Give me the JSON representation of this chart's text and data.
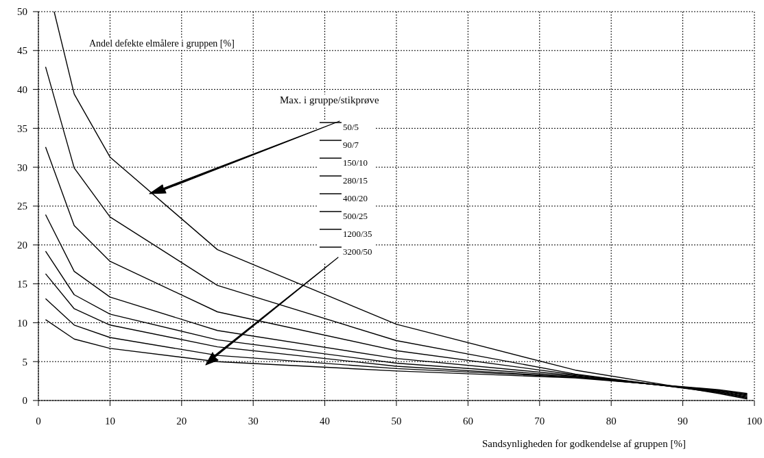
{
  "chart_data": {
    "type": "line",
    "ylabel": "Andel defekte elmålere i gruppen [%]",
    "xlabel": "Sandsynligheden for godkendelse af gruppen [%]",
    "legend_title": "Max. i gruppe/stikprøve",
    "legend": "top",
    "grid": true,
    "x": [
      1,
      5,
      10,
      25,
      50,
      75,
      95,
      99
    ],
    "xlim": [
      0,
      100
    ],
    "xticks": [
      0,
      10,
      20,
      30,
      40,
      50,
      60,
      70,
      80,
      90,
      100
    ],
    "ylim": [
      0,
      50
    ],
    "yticks": [
      0,
      5,
      10,
      15,
      20,
      25,
      30,
      35,
      40,
      45,
      50
    ],
    "series": [
      {
        "name": "50/5",
        "color": "#000000",
        "x": [
          2.2,
          5,
          10,
          25,
          50,
          75,
          95,
          99
        ],
        "values": [
          50,
          39.4,
          31.3,
          19.4,
          9.8,
          3.9,
          0.9,
          0.2
        ]
      },
      {
        "name": "90/7",
        "color": "#000000",
        "values": [
          42.9,
          29.9,
          23.6,
          14.8,
          7.7,
          3.4,
          1.0,
          0.3
        ]
      },
      {
        "name": "150/10",
        "color": "#000000",
        "values": [
          32.6,
          22.5,
          17.9,
          11.4,
          6.4,
          3.3,
          1.1,
          0.4
        ]
      },
      {
        "name": "280/15",
        "color": "#000000",
        "values": [
          23.9,
          16.6,
          13.3,
          9.0,
          5.4,
          3.2,
          1.1,
          0.5
        ]
      },
      {
        "name": "400/20",
        "color": "#000000",
        "values": [
          19.2,
          13.6,
          11.1,
          7.8,
          4.8,
          3.1,
          1.2,
          0.6
        ]
      },
      {
        "name": "500/25",
        "color": "#000000",
        "values": [
          16.3,
          11.8,
          9.7,
          6.9,
          4.4,
          3.0,
          1.3,
          0.7
        ]
      },
      {
        "name": "1200/35",
        "color": "#000000",
        "values": [
          13.1,
          9.7,
          8.1,
          5.8,
          4.1,
          3.0,
          1.3,
          0.8
        ]
      },
      {
        "name": "3200/50",
        "color": "#000000",
        "values": [
          10.4,
          7.9,
          6.7,
          5.0,
          3.8,
          2.9,
          1.4,
          0.9
        ]
      }
    ]
  }
}
